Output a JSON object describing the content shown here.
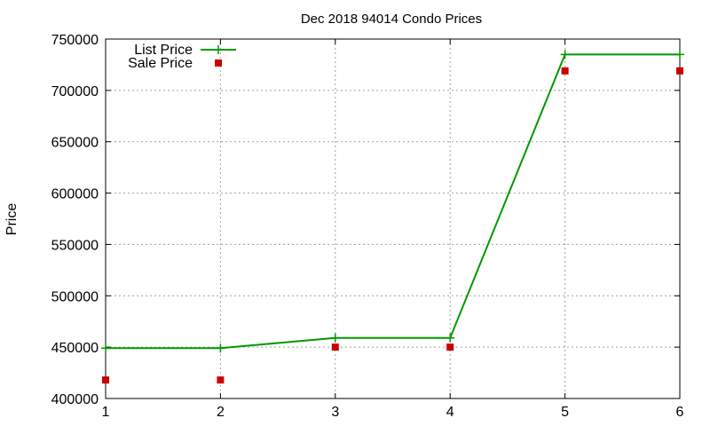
{
  "chart_data": {
    "type": "line",
    "title": "Dec 2018 94014 Condo Prices",
    "xlabel": "",
    "ylabel": "Price",
    "x": [
      1,
      2,
      3,
      4,
      5,
      6
    ],
    "xlim": [
      1,
      6
    ],
    "ylim": [
      400000,
      750000
    ],
    "xticks": [
      "1",
      "2",
      "3",
      "4",
      "5",
      "6"
    ],
    "yticks": [
      "400000",
      "450000",
      "500000",
      "550000",
      "600000",
      "650000",
      "700000",
      "750000"
    ],
    "grid": true,
    "legend_position": "top-left",
    "series": [
      {
        "name": "List Price",
        "type": "line-with-points",
        "color": "#009900",
        "values": [
          449000,
          449000,
          459000,
          459000,
          735000,
          735000
        ]
      },
      {
        "name": "Sale Price",
        "type": "points",
        "color": "#cc0000",
        "values": [
          418000,
          418000,
          450000,
          450000,
          719000,
          719000
        ]
      }
    ]
  }
}
